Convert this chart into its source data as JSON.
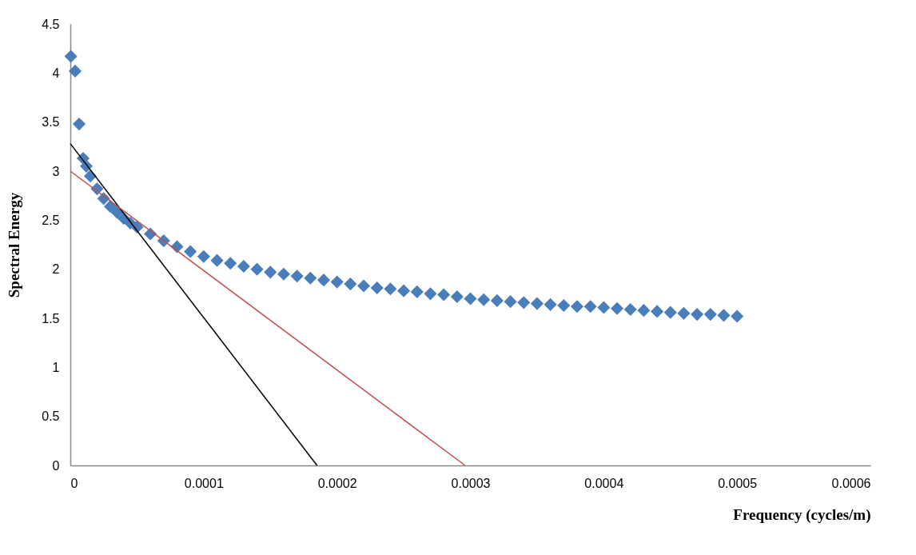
{
  "chart_data": {
    "type": "scatter",
    "xlabel": "Frequency (cycles/m)",
    "ylabel": "Spectral Energy",
    "grid": false,
    "xlim": [
      0,
      0.0006
    ],
    "xticks": [
      0,
      0.0001,
      0.0002,
      0.0003,
      0.0004,
      0.0005,
      0.0006
    ],
    "ylim": [
      0,
      4.5
    ],
    "yticks": [
      0,
      0.5,
      1,
      1.5,
      2,
      2.5,
      3,
      3.5,
      4,
      4.5
    ],
    "series": [
      {
        "color": "#4a7ebb",
        "marker": "diamond",
        "x": [
          4e-07,
          3.6e-06,
          6.6e-06,
          9.6e-06,
          1.2e-05,
          1.5e-05,
          2e-05,
          2.5e-05,
          3e-05,
          3.5e-05,
          4e-05,
          4.5e-05,
          5e-05,
          6e-05,
          7e-05,
          8e-05,
          9e-05,
          0.0001,
          0.00011,
          0.00012,
          0.00013,
          0.00014,
          0.00015,
          0.00016,
          0.00017,
          0.00018,
          0.00019,
          0.0002,
          0.00021,
          0.00022,
          0.00023,
          0.00024,
          0.00025,
          0.00026,
          0.00027,
          0.00028,
          0.00029,
          0.0003,
          0.00031,
          0.00032,
          0.00033,
          0.00034,
          0.00035,
          0.00036,
          0.00037,
          0.00038,
          0.00039,
          0.0004,
          0.00041,
          0.00042,
          0.00043,
          0.00044,
          0.00045,
          0.00046,
          0.00047,
          0.00048,
          0.00049,
          0.0005
        ],
        "values": [
          4.17,
          4.02,
          3.48,
          3.13,
          3.05,
          2.95,
          2.82,
          2.72,
          2.64,
          2.58,
          2.52,
          2.47,
          2.43,
          2.36,
          2.29,
          2.23,
          2.18,
          2.13,
          2.09,
          2.06,
          2.03,
          2.0,
          1.97,
          1.95,
          1.93,
          1.91,
          1.89,
          1.87,
          1.85,
          1.83,
          1.81,
          1.8,
          1.78,
          1.77,
          1.75,
          1.74,
          1.72,
          1.7,
          1.69,
          1.68,
          1.67,
          1.66,
          1.65,
          1.64,
          1.63,
          1.62,
          1.62,
          1.61,
          1.6,
          1.59,
          1.58,
          1.57,
          1.56,
          1.55,
          1.54,
          1.54,
          1.53,
          1.52
        ]
      },
      {
        "type": "line",
        "color": "#000000",
        "x": [
          0,
          0.000185
        ],
        "values": [
          3.28,
          0
        ]
      },
      {
        "type": "line",
        "color": "#c0504d",
        "x": [
          0,
          0.000296
        ],
        "values": [
          3.0,
          0
        ]
      }
    ]
  }
}
